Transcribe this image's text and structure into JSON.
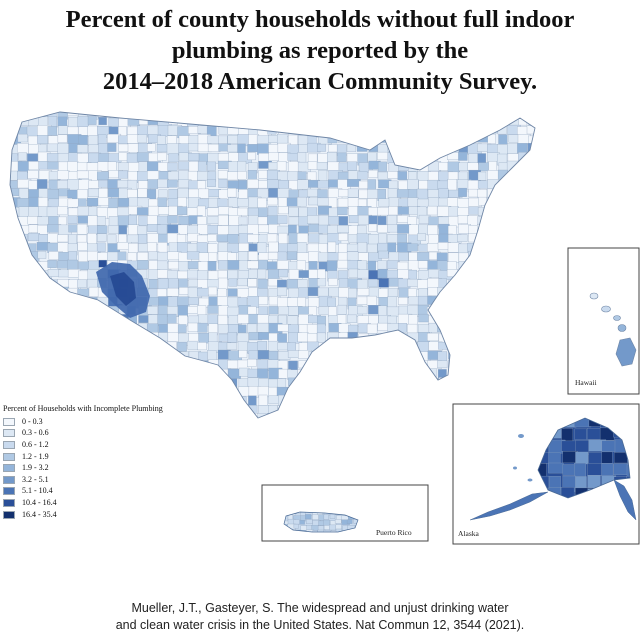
{
  "title": {
    "line1": "Percent of county households without full indoor",
    "line2": "plumbing as reported by the",
    "line3": "2014–2018 American Community Survey."
  },
  "legend": {
    "title": "Percent of Households with Incomplete Plumbing",
    "items": [
      {
        "label": "0 - 0.3",
        "color": "#f3f7fc"
      },
      {
        "label": "0.3 - 0.6",
        "color": "#dde8f4"
      },
      {
        "label": "0.6 - 1.2",
        "color": "#c9daee"
      },
      {
        "label": "1.2 - 1.9",
        "color": "#b0c9e4"
      },
      {
        "label": "1.9 - 3.2",
        "color": "#94b5da"
      },
      {
        "label": "3.2 - 5.1",
        "color": "#7399ca"
      },
      {
        "label": "5.1 - 10.4",
        "color": "#4b74b5"
      },
      {
        "label": "10.4 - 16.4",
        "color": "#2a4f98"
      },
      {
        "label": "16.4 - 35.4",
        "color": "#13306e"
      }
    ]
  },
  "insets": {
    "hawaii": "Hawaii",
    "puerto_rico": "Puerto Rico",
    "alaska": "Alaska"
  },
  "citation": {
    "line1": "Mueller, J.T., Gasteyer, S. The widespread and unjust drinking water",
    "line2": "and clean water crisis in the United States. Nat Commun 12, 3544 (2021)."
  },
  "colors": {
    "border": "#6f86a6",
    "background": "#ffffff"
  }
}
